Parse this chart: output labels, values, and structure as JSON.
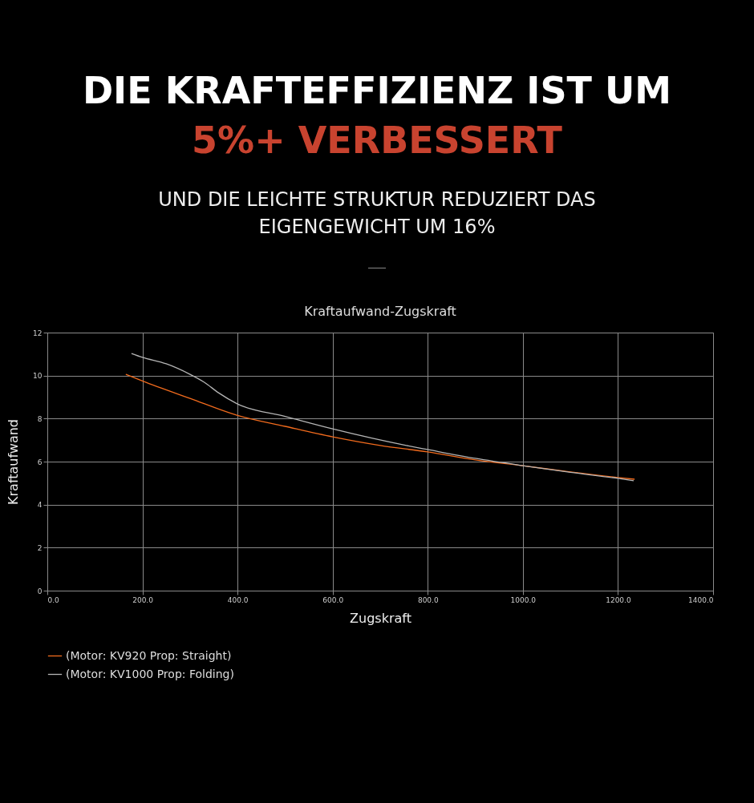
{
  "chart_data": {
    "type": "line",
    "title": "DIE KRAFTEFFIZIENZ IST UM 5%+ VERBESSERT",
    "subtitle": "UND DIE LEICHTE STRUKTUR REDUZIERT DAS EIGENGEWICHT UM 16%",
    "annotations": [
      "Kraftaufwand-Zugskraft"
    ],
    "xlabel": "Zugskraft",
    "ylabel": "Kraftaufwand",
    "series": [
      {
        "name": "(Motor: KV920 Prop: Straight)",
        "color": "#f26b1d",
        "x": [
          165,
          200,
          300,
          400,
          500,
          600,
          700,
          800,
          900,
          1000,
          1100,
          1200,
          1235
        ],
        "values": [
          10.06,
          9.75,
          8.94,
          8.15,
          7.64,
          7.15,
          6.75,
          6.45,
          6.08,
          5.81,
          5.52,
          5.26,
          5.18
        ]
      },
      {
        "name": "(Motor: KV1000 Prop: Folding)",
        "color": "#b5b5b5",
        "x": [
          177,
          200,
          250,
          300,
          330,
          360,
          400,
          500,
          600,
          755,
          800,
          900,
          1000,
          1100,
          1200,
          1233
        ],
        "values": [
          11.03,
          10.85,
          10.55,
          10.06,
          9.69,
          9.2,
          8.68,
          8.1,
          7.52,
          6.75,
          6.56,
          6.15,
          5.81,
          5.5,
          5.22,
          5.11
        ]
      }
    ],
    "xlim": [
      0,
      1400
    ],
    "xticks": [
      {
        "value": 0,
        "label": "0.0"
      },
      {
        "value": 200,
        "label": "200.0"
      },
      {
        "value": 400,
        "label": "400.0"
      },
      {
        "value": 600,
        "label": "600.0"
      },
      {
        "value": 800,
        "label": "800.0"
      },
      {
        "value": 1000,
        "label": "1000.0"
      },
      {
        "value": 1200,
        "label": "1200.0"
      },
      {
        "value": 1400,
        "label": "1400.0"
      }
    ],
    "ylim": [
      0,
      12
    ],
    "yticks": [
      0,
      2,
      4,
      6,
      8,
      10,
      12
    ],
    "grid": true,
    "legend": "bottom",
    "marker": "none",
    "line_style": "solid"
  }
}
